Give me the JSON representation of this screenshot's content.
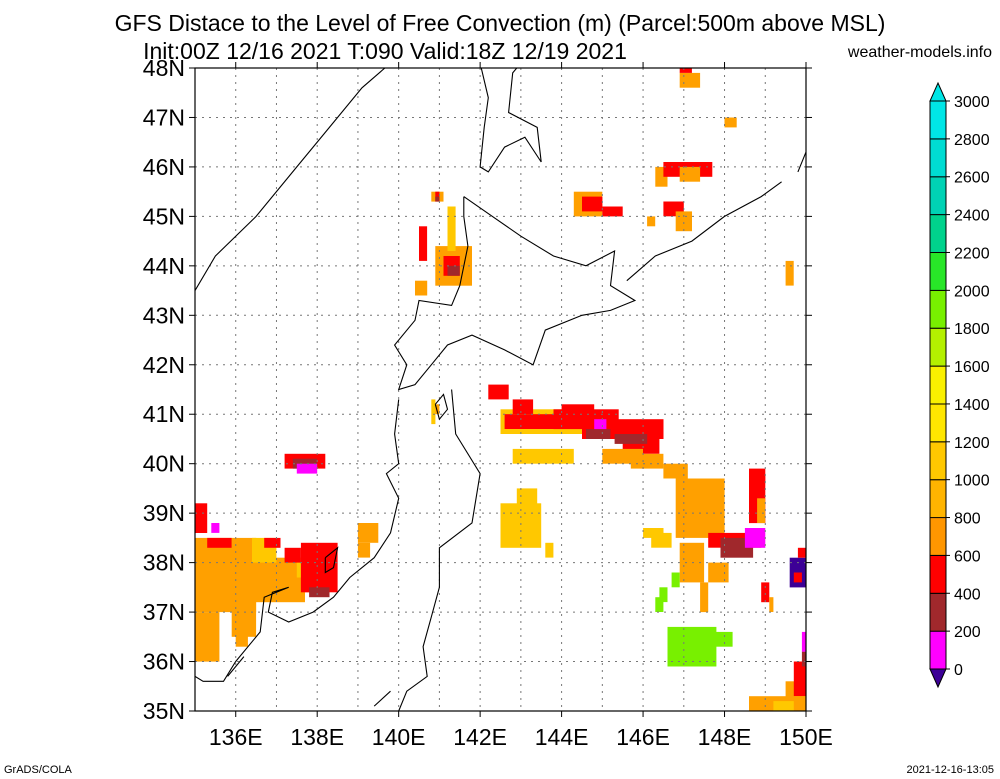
{
  "title_line1": "GFS Distace to the Level of Free Convection (m) (Parcel:500m above MSL)",
  "title_line2": "Init:00Z 12/16 2021 T:090 Valid:18Z 12/19 2021",
  "site": "weather-models.info",
  "credit": "GrADS/COLA",
  "timestamp": "2021-12-16-13:05",
  "map": {
    "lon_range": [
      135,
      150
    ],
    "lat_range": [
      35,
      48
    ],
    "lat_ticks": [
      "35N",
      "36N",
      "37N",
      "38N",
      "39N",
      "40N",
      "41N",
      "42N",
      "43N",
      "44N",
      "45N",
      "46N",
      "47N",
      "48N"
    ],
    "lon_ticks": [
      "136E",
      "138E",
      "140E",
      "142E",
      "144E",
      "146E",
      "148E",
      "150E"
    ],
    "grid": true
  },
  "colorbar": {
    "levels": [
      "0",
      "200",
      "400",
      "600",
      "800",
      "1000",
      "1200",
      "1400",
      "1600",
      "1800",
      "2000",
      "2200",
      "2400",
      "2600",
      "2800",
      "3000"
    ],
    "colors": [
      "#3c0096",
      "#ff00ff",
      "#a0282c",
      "#ff0000",
      "#ff9600",
      "#ffb400",
      "#ffc800",
      "#ffe600",
      "#faf000",
      "#b4f000",
      "#78f000",
      "#28e628",
      "#00d28c",
      "#00d2b4",
      "#00dcd2",
      "#00e6e6"
    ],
    "units": "m"
  },
  "colors": {
    "red": "#ff0000",
    "orange": "#ffa000",
    "gold": "#ffc800",
    "yellow": "#ffe600",
    "brown": "#a0282c",
    "magenta": "#ff00ff",
    "purple": "#3c0096",
    "green": "#78f000"
  }
}
